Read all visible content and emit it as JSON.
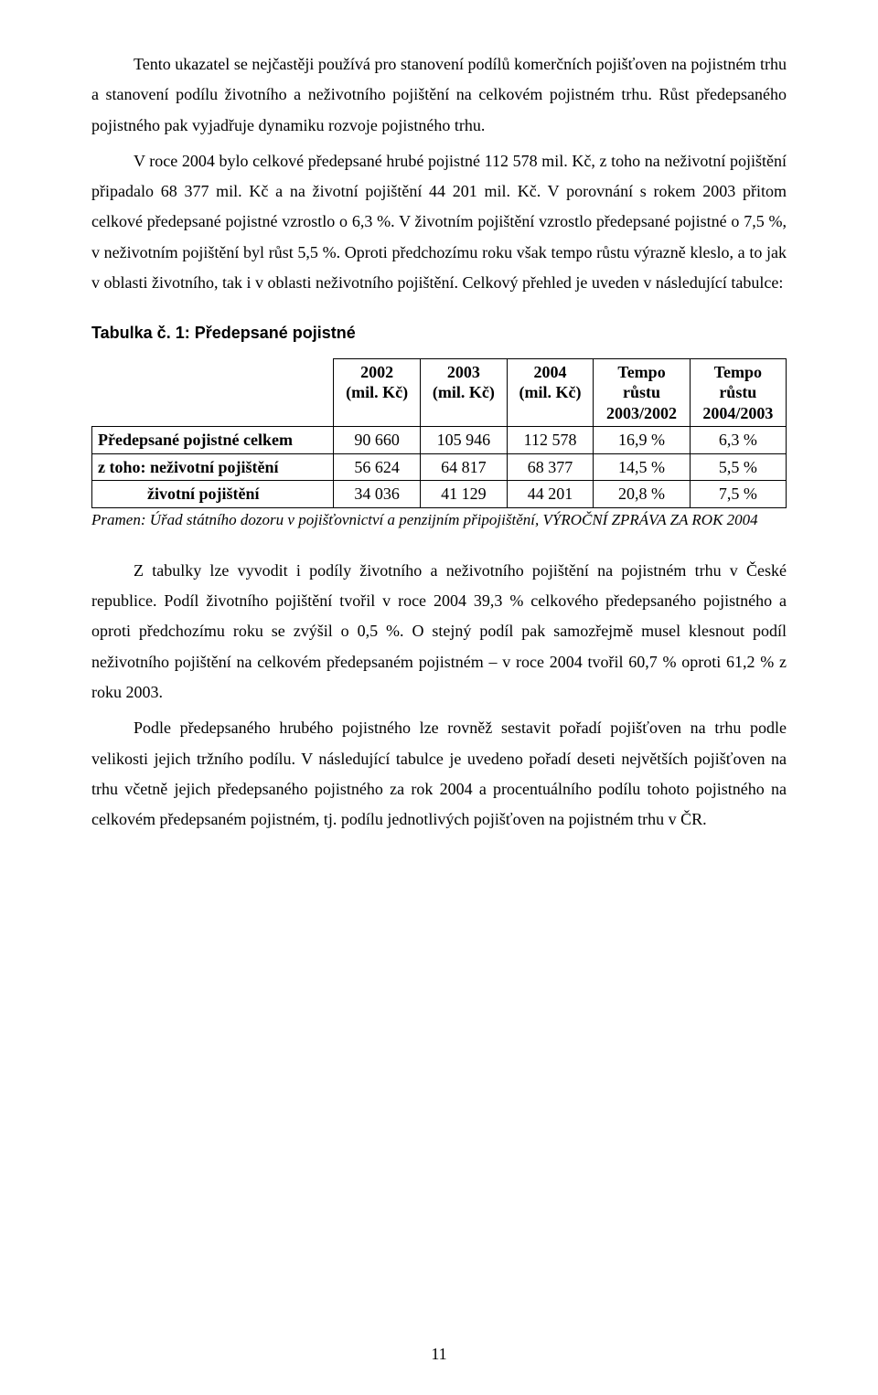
{
  "paragraphs": {
    "p1": "Tento ukazatel se nejčastěji používá pro stanovení podílů komerčních pojišťoven na pojistném trhu a stanovení podílu životního a neživotního pojištění na celkovém pojistném trhu. Růst předepsaného pojistného pak vyjadřuje dynamiku rozvoje pojistného trhu.",
    "p2": "V roce 2004 bylo celkové předepsané hrubé pojistné 112 578 mil. Kč, z toho na neživotní pojištění připadalo 68 377 mil. Kč a na životní pojištění 44 201 mil. Kč. V porovnání s rokem 2003 přitom celkové předepsané pojistné vzrostlo o 6,3 %. V životním pojištění vzrostlo předepsané pojistné o 7,5 %, v neživotním pojištění byl růst 5,5 %. Oproti předchozímu roku však tempo růstu výrazně kleslo, a to jak v oblasti životního, tak i v oblasti neživotního pojištění. Celkový přehled je uveden v následující tabulce:",
    "p3": "Z tabulky lze vyvodit i podíly životního a neživotního pojištění na pojistném trhu v České republice. Podíl životního pojištění tvořil v roce 2004 39,3 % celkového předepsaného pojistného a oproti předchozímu roku se zvýšil o 0,5 %. O stejný podíl pak samozřejmě musel klesnout podíl neživotního pojištění na celkovém předepsaném pojistném – v roce 2004 tvořil 60,7 % oproti  61,2 % z roku 2003.",
    "p4": "Podle předepsaného hrubého pojistného lze rovněž sestavit pořadí pojišťoven na trhu podle velikosti jejich tržního podílu. V následující tabulce je uvedeno pořadí deseti největších pojišťoven na trhu včetně jejich předepsaného pojistného za rok 2004 a procentuálního podílu tohoto pojistného na celkovém předepsaném pojistném, tj. podílu jednotlivých pojišťoven na pojistném trhu v ČR."
  },
  "table": {
    "title": "Tabulka č. 1: Předepsané pojistné",
    "columns": [
      {
        "l1": "2002",
        "l2": "(mil. Kč)"
      },
      {
        "l1": "2003",
        "l2": "(mil. Kč)"
      },
      {
        "l1": "2004",
        "l2": "(mil. Kč)"
      },
      {
        "l1": "Tempo",
        "l2": "růstu",
        "l3": "2003/2002"
      },
      {
        "l1": "Tempo",
        "l2": "růstu",
        "l3": "2004/2003"
      }
    ],
    "rows": [
      {
        "label": "Předepsané pojistné celkem",
        "indent": false,
        "cells": [
          "90 660",
          "105 946",
          "112 578",
          "16,9 %",
          "6,3 %"
        ]
      },
      {
        "label": "z toho: neživotní pojištění",
        "indent": false,
        "cells": [
          "56 624",
          "64 817",
          "68 377",
          "14,5 %",
          "5,5 %"
        ]
      },
      {
        "label": "životní pojištění",
        "indent": true,
        "cells": [
          "34 036",
          "41 129",
          "44 201",
          "20,8 %",
          "7,5 %"
        ]
      }
    ],
    "source": "Pramen: Úřad státního dozoru v pojišťovnictví a penzijním připojištění, VÝROČNÍ ZPRÁVA ZA ROK 2004"
  },
  "pagenum": "11"
}
